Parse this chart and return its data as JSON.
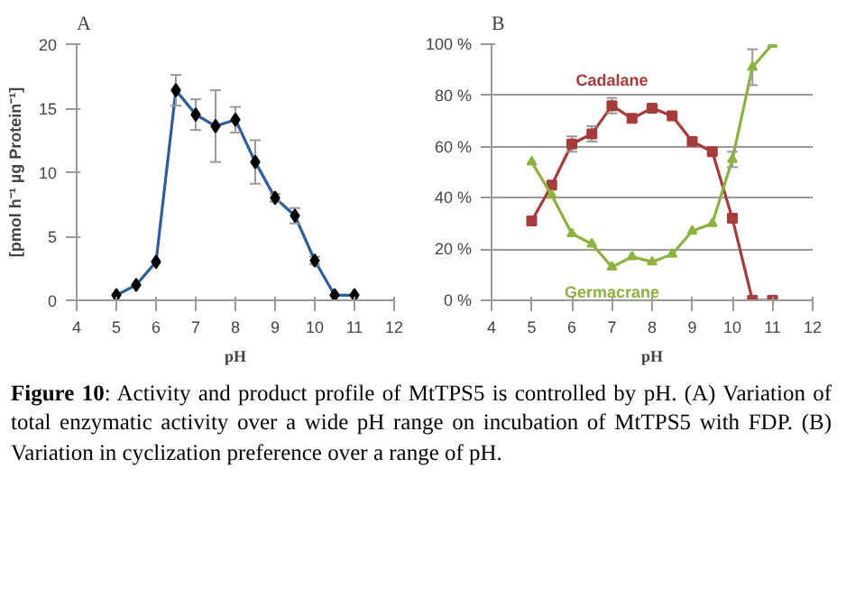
{
  "chart_data": [
    {
      "type": "line",
      "title": "A",
      "xlabel": "pH",
      "ylabel": "[pmol h⁻¹ µg Protein⁻¹]",
      "xlim": [
        4,
        12
      ],
      "xticks": [
        4,
        5,
        6,
        7,
        8,
        9,
        10,
        11,
        12
      ],
      "ylim": [
        0,
        20
      ],
      "yticks": [
        0,
        5,
        10,
        15,
        20
      ],
      "grid": false,
      "x": [
        5,
        5.5,
        6,
        6.5,
        7,
        7.5,
        8,
        8.5,
        9,
        9.5,
        10,
        10.5,
        11
      ],
      "series": [
        {
          "color": "#2e5e9a",
          "marker": "diamond",
          "values": [
            0.4,
            1.2,
            3.0,
            16.4,
            14.5,
            13.6,
            14.1,
            10.8,
            8.0,
            6.6,
            3.1,
            0.4,
            0.4
          ],
          "errors": [
            null,
            null,
            null,
            1.2,
            1.2,
            2.8,
            1.0,
            1.7,
            0.3,
            0.6,
            0.3,
            null,
            null
          ]
        }
      ],
      "annotations": [
        "Figure 10: Activity and product profile of MtTPS5 is controlled by pH. (A) Variation of total enzymatic activity over a wide pH range on incubation of MtTPS5 with FDP. (B) Variation in cyclization preference over a range of pH."
      ]
    },
    {
      "type": "line",
      "title": "B",
      "xlabel": "pH",
      "xlim": [
        4,
        12
      ],
      "xticks": [
        4,
        5,
        6,
        7,
        8,
        9,
        10,
        11,
        12
      ],
      "ylim": [
        0,
        100
      ],
      "yticks": [
        {
          "value": 0,
          "label": "0 %"
        },
        {
          "value": 20,
          "label": "20 %"
        },
        {
          "value": 40,
          "label": "40 %"
        },
        {
          "value": 60,
          "label": "60 %"
        },
        {
          "value": 80,
          "label": "80 %"
        },
        {
          "value": 100,
          "label": "100 %"
        }
      ],
      "grid": "y",
      "x": [
        5,
        5.5,
        6,
        6.5,
        7,
        7.5,
        8,
        8.5,
        9,
        9.5,
        10,
        10.5,
        11
      ],
      "series": [
        {
          "name": "Cadalane",
          "color": "#a83a3a",
          "marker": "square",
          "values": [
            31,
            45,
            61,
            65,
            76,
            71,
            75,
            72,
            62,
            58,
            32,
            0,
            0
          ],
          "errors": [
            null,
            null,
            3,
            3,
            3,
            null,
            null,
            null,
            null,
            null,
            null,
            null,
            null
          ]
        },
        {
          "name": "Germacrane",
          "color": "#8cb33c",
          "marker": "triangle",
          "values": [
            54,
            41,
            26,
            22,
            13,
            17,
            15,
            18,
            27,
            30,
            55,
            91,
            100
          ],
          "errors": [
            null,
            null,
            null,
            null,
            null,
            null,
            null,
            null,
            null,
            null,
            3,
            7,
            null
          ]
        }
      ]
    }
  ]
}
